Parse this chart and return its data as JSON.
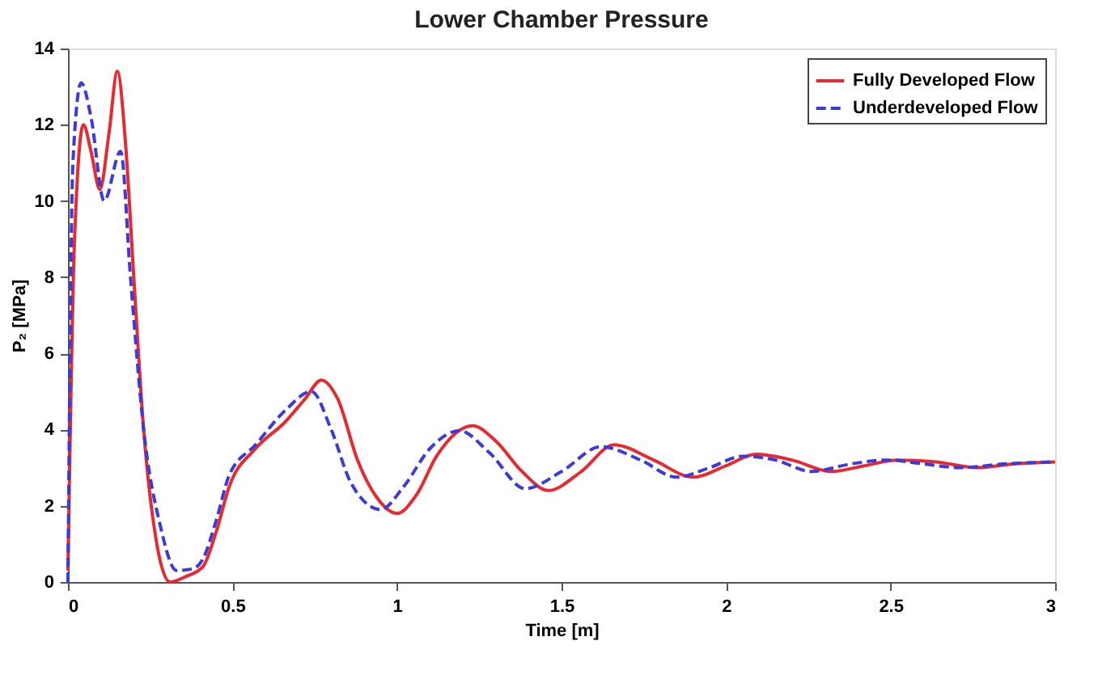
{
  "chart_data": {
    "type": "line",
    "title": "Lower Chamber Pressure",
    "xlabel": "Time [m]",
    "ylabel": "P₂ [MPa]",
    "xlim": [
      0,
      3
    ],
    "xticks": [
      0,
      0.5,
      1,
      1.5,
      2,
      2.5,
      3
    ],
    "ylim": [
      0,
      14
    ],
    "yticks": [
      0,
      2,
      4,
      6,
      8,
      10,
      12,
      14
    ],
    "grid": false,
    "legend": "top right",
    "marker": "none",
    "series": [
      {
        "name": "Fully Developed Flow",
        "color": "#e8292f",
        "line_style": "solid",
        "x": [
          0,
          0.02,
          0.047,
          0.07,
          0.097,
          0.125,
          0.15,
          0.175,
          0.2,
          0.23,
          0.27,
          0.31,
          0.36,
          0.41,
          0.45,
          0.49,
          0.57,
          0.66,
          0.72,
          0.77,
          0.82,
          0.88,
          0.94,
          1.0,
          1.06,
          1.12,
          1.23,
          1.3,
          1.38,
          1.46,
          1.56,
          1.66,
          1.78,
          1.9,
          2.0,
          2.09,
          2.2,
          2.32,
          2.42,
          2.52,
          2.64,
          2.76,
          2.88,
          3.0
        ],
        "values": [
          0.3,
          9.0,
          12.0,
          11.3,
          10.3,
          11.8,
          13.4,
          11.5,
          8.0,
          4.0,
          1.0,
          0.0,
          0.15,
          0.4,
          1.3,
          2.5,
          3.5,
          4.2,
          4.8,
          5.3,
          4.8,
          3.2,
          2.2,
          1.8,
          2.3,
          3.3,
          4.1,
          3.7,
          2.9,
          2.4,
          2.9,
          3.6,
          3.2,
          2.75,
          3.05,
          3.35,
          3.2,
          2.9,
          3.05,
          3.2,
          3.15,
          3.0,
          3.1,
          3.15
        ]
      },
      {
        "name": "Underdeveloped Flow",
        "color": "#3b3bdc",
        "line_style": "dashed",
        "x": [
          0,
          0.015,
          0.04,
          0.07,
          0.11,
          0.16,
          0.19,
          0.23,
          0.28,
          0.33,
          0.38,
          0.41,
          0.45,
          0.49,
          0.57,
          0.66,
          0.74,
          0.8,
          0.86,
          0.95,
          1.02,
          1.1,
          1.19,
          1.28,
          1.39,
          1.5,
          1.62,
          1.74,
          1.85,
          1.95,
          2.05,
          2.15,
          2.26,
          2.38,
          2.49,
          2.6,
          2.71,
          2.85,
          3.0
        ],
        "values": [
          0.0,
          11.0,
          13.1,
          12.2,
          10.0,
          11.3,
          8.0,
          4.0,
          1.5,
          0.3,
          0.35,
          0.6,
          1.6,
          2.8,
          3.6,
          4.5,
          5.0,
          4.0,
          2.6,
          1.9,
          2.5,
          3.5,
          3.97,
          3.4,
          2.45,
          2.9,
          3.55,
          3.2,
          2.75,
          3.0,
          3.3,
          3.2,
          2.9,
          3.1,
          3.2,
          3.1,
          3.0,
          3.1,
          3.15
        ]
      }
    ]
  }
}
